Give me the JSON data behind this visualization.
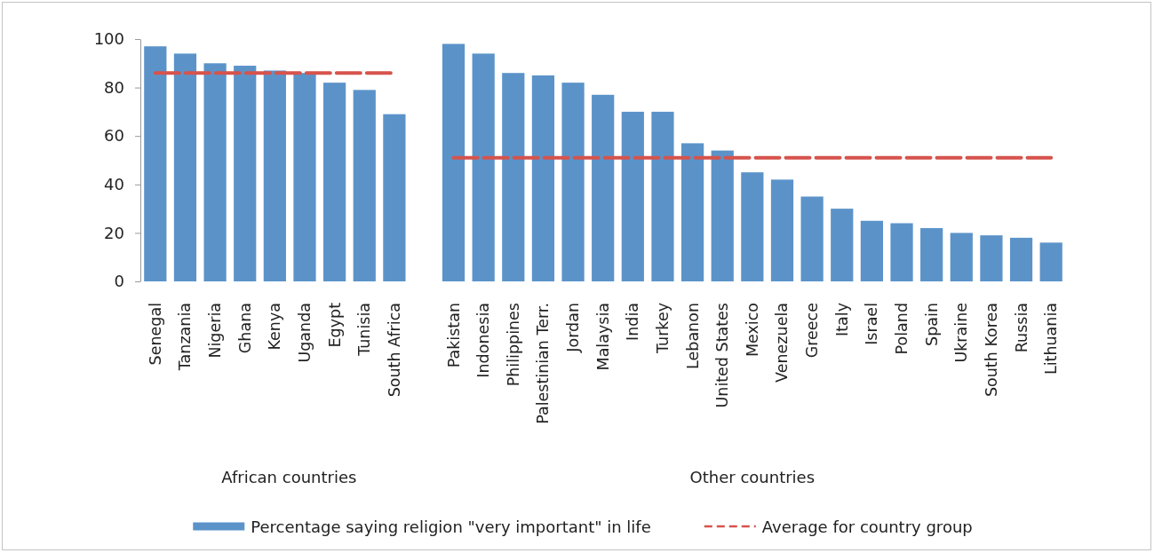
{
  "chart_data": [
    {
      "type": "bar",
      "categories": [
        "Senegal",
        "Tanzania",
        "Nigeria",
        "Ghana",
        "Kenya",
        "Uganda",
        "Egypt",
        "Tunisia",
        "South Africa"
      ],
      "series": [
        {
          "name": "Percentage saying religion \"very important\" in life",
          "color": "#5b93c9",
          "values": [
            97,
            94,
            90,
            89,
            87,
            86,
            82,
            79,
            69
          ]
        }
      ],
      "xlabel": "African countries",
      "ylim": [
        0,
        100
      ],
      "yticks": [
        0,
        20,
        40,
        60,
        80,
        100
      ],
      "ref_lines": [
        {
          "axis": "y",
          "value": 86,
          "label": "Average for country group",
          "color": "#d6534c",
          "line_style": "dashed"
        }
      ],
      "legend": "bottom"
    },
    {
      "type": "bar",
      "categories": [
        "Pakistan",
        "Indonesia",
        "Philippines",
        "Palestinian Terr.",
        "Jordan",
        "Malaysia",
        "India",
        "Turkey",
        "Lebanon",
        "United States",
        "Mexico",
        "Venezuela",
        "Greece",
        "Italy",
        "Israel",
        "Poland",
        "Spain",
        "Ukraine",
        "South Korea",
        "Russia",
        "Lithuania"
      ],
      "series": [
        {
          "color": "#5b93c9",
          "values": [
            98,
            94,
            86,
            85,
            82,
            77,
            70,
            70,
            57,
            54,
            45,
            42,
            35,
            30,
            25,
            24,
            22,
            20,
            19,
            18,
            16
          ]
        }
      ],
      "xlabel": "Other countries",
      "ylim": [
        0,
        100
      ],
      "tick_labels": "x",
      "ref_lines": [
        {
          "axis": "y",
          "value": 51,
          "color": "#d6534c",
          "line_style": "dashed"
        }
      ]
    }
  ]
}
